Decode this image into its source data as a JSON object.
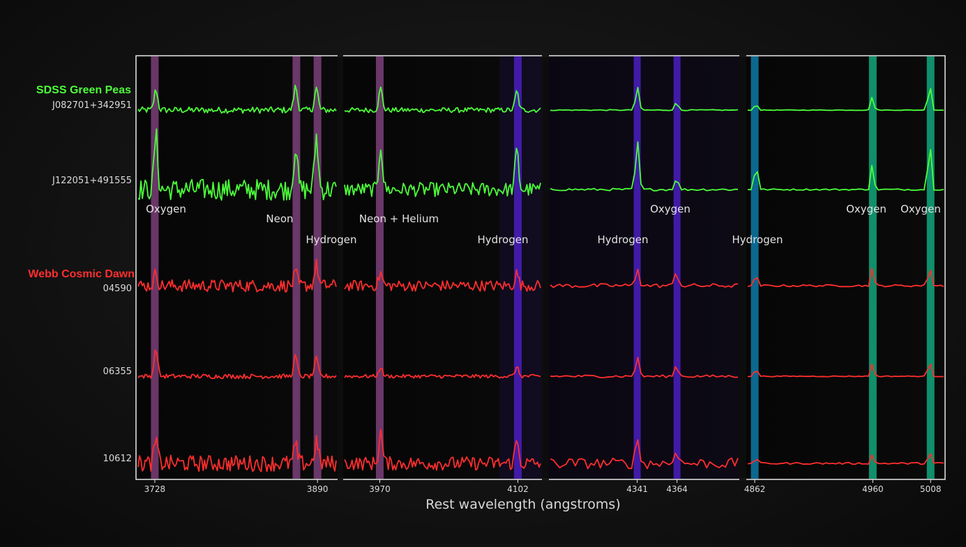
{
  "chart_data": {
    "type": "line",
    "xlabel": "Rest wavelength (angstroms)",
    "groups": [
      {
        "name": "SDSS Green Peas",
        "color": "#4cff3a",
        "objects": [
          "J082701+342951",
          "J122051+491555"
        ]
      },
      {
        "name": "Webb Cosmic Dawn",
        "color": "#ff2e2e",
        "objects": [
          "04590",
          "06355",
          "10612"
        ]
      }
    ],
    "x_ticks": [
      3728,
      3890,
      3970,
      4102,
      4341,
      4364,
      4862,
      4960,
      5008
    ],
    "panels": [
      {
        "xlim": [
          3710,
          3910
        ],
        "ticks": [
          3728,
          3890
        ]
      },
      {
        "xlim": [
          3935,
          4125
        ],
        "ticks": [
          3970,
          4102
        ]
      },
      {
        "xlim": [
          4290,
          4400
        ],
        "ticks": [
          4341,
          4364
        ]
      },
      {
        "xlim": [
          4855,
          5020
        ],
        "ticks": [
          4862,
          4960,
          5008
        ]
      }
    ],
    "emission_lines": [
      {
        "wavelength": 3728,
        "element": "Oxygen",
        "color": "#7b3f7a"
      },
      {
        "wavelength": 3869,
        "element": "Neon",
        "color": "#7b3f7a"
      },
      {
        "wavelength": 3890,
        "element": "Hydrogen",
        "color": "#7b3f7a"
      },
      {
        "wavelength": 3970,
        "element": "Neon + Helium",
        "color": "#7b3f7a"
      },
      {
        "wavelength": 4102,
        "element": "Hydrogen",
        "color": "#4a1fc0"
      },
      {
        "wavelength": 4341,
        "element": "Hydrogen",
        "color": "#4a1fc0"
      },
      {
        "wavelength": 4364,
        "element": "Oxygen",
        "color": "#4a1fc0"
      },
      {
        "wavelength": 4862,
        "element": "Hydrogen",
        "color": "#0e7aa8"
      },
      {
        "wavelength": 4960,
        "element": "Oxygen",
        "color": "#10a77c"
      },
      {
        "wavelength": 5008,
        "element": "Oxygen",
        "color": "#10a77c"
      }
    ],
    "spectra": [
      {
        "object": "J082701+342951",
        "group": "SDSS Green Peas",
        "amplitudes": [
          [
            0.65,
            0.75,
            0.7,
            0.65,
            0.7
          ],
          [
            0.7,
            0.6,
            0.7,
            0.5,
            0.6
          ],
          [
            0.75,
            0.25,
            0.3,
            0.65,
            0.8
          ],
          [
            0.25,
            0.45,
            1.0,
            0.8,
            0.9
          ]
        ],
        "noise": [
          0.1,
          0.08,
          0.015,
          0.01
        ]
      },
      {
        "object": "J122051+491555",
        "group": "SDSS Green Peas",
        "amplitudes": [
          [
            0.9,
            0.75,
            0.9,
            0.6,
            0.8
          ],
          [
            0.75,
            0.65,
            0.9,
            0.5,
            0.6
          ],
          [
            0.85,
            0.2,
            0.35,
            0.7,
            0.9
          ],
          [
            0.55,
            0.45,
            1.0,
            0.7,
            0.9
          ]
        ],
        "noise": [
          0.18,
          0.12,
          0.02,
          0.012
        ]
      },
      {
        "object": "04590",
        "group": "Webb Cosmic Dawn",
        "amplitudes": [
          [
            0.3,
            0.3,
            0.5,
            0.7,
            0.5
          ],
          [
            0.3,
            0.3,
            0.5,
            0.4,
            0.5
          ],
          [
            0.45,
            0.35,
            0.3,
            0.7,
            0.5
          ],
          [
            0.3,
            0.45,
            0.55,
            0.7,
            0.9
          ]
        ],
        "noise": [
          0.15,
          0.13,
          0.05,
          0.025
        ]
      },
      {
        "object": "06355",
        "group": "Webb Cosmic Dawn",
        "amplitudes": [
          [
            0.6,
            0.45,
            0.4,
            0.6,
            0.5
          ],
          [
            0.2,
            0.2,
            0.2,
            0.3,
            0.3
          ],
          [
            0.45,
            0.25,
            0.3,
            0.7,
            0.5
          ],
          [
            0.2,
            0.3,
            0.4,
            0.5,
            0.7
          ]
        ],
        "noise": [
          0.05,
          0.04,
          0.03,
          0.01
        ]
      },
      {
        "object": "10612",
        "group": "Webb Cosmic Dawn",
        "amplitudes": [
          [
            0.5,
            0.4,
            0.5,
            0.7,
            0.5
          ],
          [
            0.7,
            0.5,
            0.7,
            0.45,
            0.6
          ],
          [
            0.6,
            0.4,
            0.3,
            0.7,
            0.5
          ],
          [
            0.15,
            0.2,
            0.3,
            0.45,
            0.6
          ]
        ],
        "noise": [
          0.18,
          0.15,
          0.12,
          0.02
        ]
      }
    ]
  }
}
